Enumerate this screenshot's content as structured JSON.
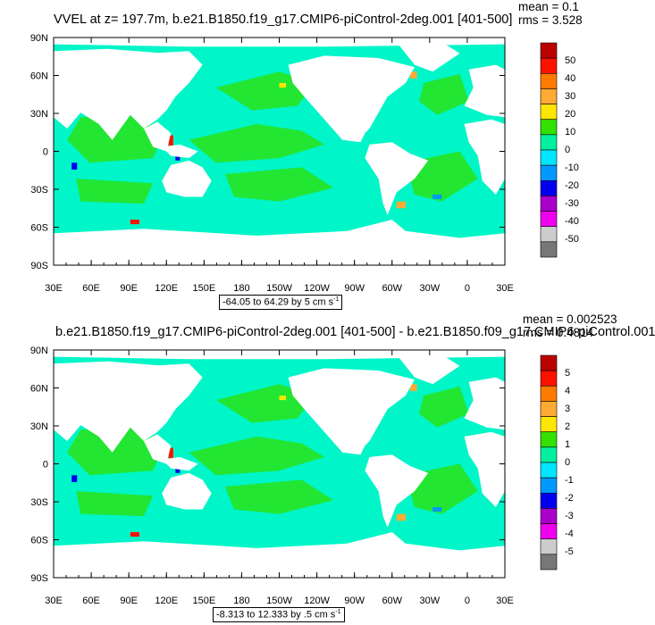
{
  "panels": [
    {
      "title": "VVEL at z= 197.7m, b.e21.B1850.f19_g17.CMIP6-piControl-2deg.001 [401-500]",
      "mean_text": "mean = 0.1",
      "rms_text": "rms = 3.528",
      "range_text": "-64.05 to 64.29 by 5 cm s",
      "range_sup": "-1",
      "colorbar_labels": [
        "50",
        "40",
        "30",
        "20",
        "10",
        "0",
        "-10",
        "-20",
        "-30",
        "-40",
        "-50"
      ]
    },
    {
      "title": "b.e21.B1850.f19_g17.CMIP6-piControl-2deg.001 [401-500] - b.e21.B1850.f09_g17.CMIP6-piControl.001",
      "mean_text": "mean = 0.002523",
      "rms_text": "rms = 0.4814",
      "range_text": "-8.313 to 12.333 by .5 cm s",
      "range_sup": "-1",
      "colorbar_labels": [
        "5",
        "4",
        "3",
        "2",
        "1",
        "0",
        "-1",
        "-2",
        "-3",
        "-4",
        "-5"
      ]
    }
  ],
  "lat_labels": [
    "90N",
    "60N",
    "30N",
    "0",
    "30S",
    "60S",
    "90S"
  ],
  "lon_labels": [
    "30E",
    "60E",
    "90E",
    "120E",
    "150E",
    "180",
    "150W",
    "120W",
    "90W",
    "60W",
    "30W",
    "0",
    "30E"
  ],
  "colors": {
    "ocean_main": "#00f5c8",
    "ocean_alt": "#22e632",
    "land": "#ffffff",
    "palette": [
      "#bb0000",
      "#ff1100",
      "#ff7a00",
      "#ffaa33",
      "#ffe600",
      "#33e000",
      "#00f0a0",
      "#00e6ff",
      "#0099ff",
      "#0000ee",
      "#aa00cc",
      "#ee00ee",
      "#cccccc",
      "#777777"
    ]
  }
}
